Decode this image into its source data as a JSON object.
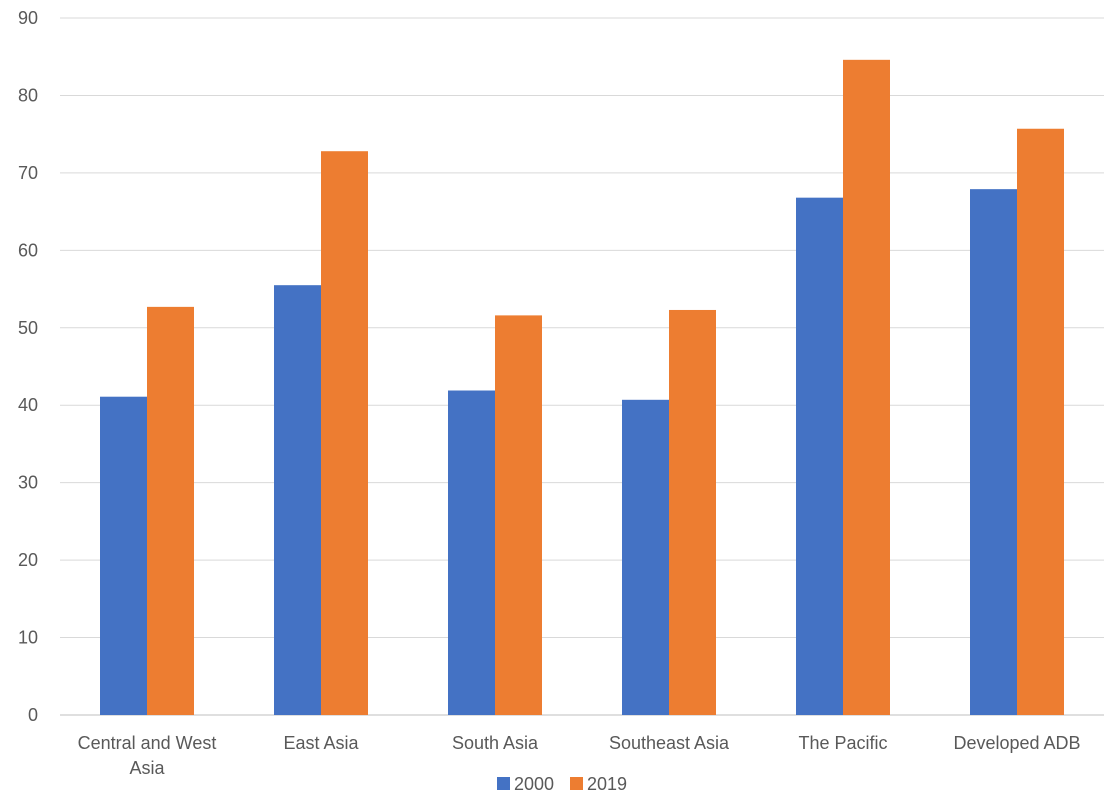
{
  "chart_data": {
    "type": "bar",
    "title": "",
    "xlabel": "",
    "ylabel": "",
    "ylim": [
      0,
      90
    ],
    "yticks": [
      "0",
      "10",
      "20",
      "30",
      "40",
      "50",
      "60",
      "70",
      "80",
      "90"
    ],
    "grid": true,
    "legend_position": "bottom",
    "categories": [
      [
        "Central and West",
        "Asia"
      ],
      [
        "East Asia"
      ],
      [
        "South Asia"
      ],
      [
        "Southeast Asia"
      ],
      [
        "The Pacific"
      ],
      [
        "Developed ADB"
      ]
    ],
    "series": [
      {
        "name": "2000",
        "color": "#4472C4",
        "values": [
          41.1,
          55.5,
          41.9,
          40.7,
          66.8,
          67.9
        ]
      },
      {
        "name": "2019",
        "color": "#ED7D31",
        "values": [
          52.7,
          72.8,
          51.6,
          52.3,
          84.6,
          75.7
        ]
      }
    ]
  }
}
